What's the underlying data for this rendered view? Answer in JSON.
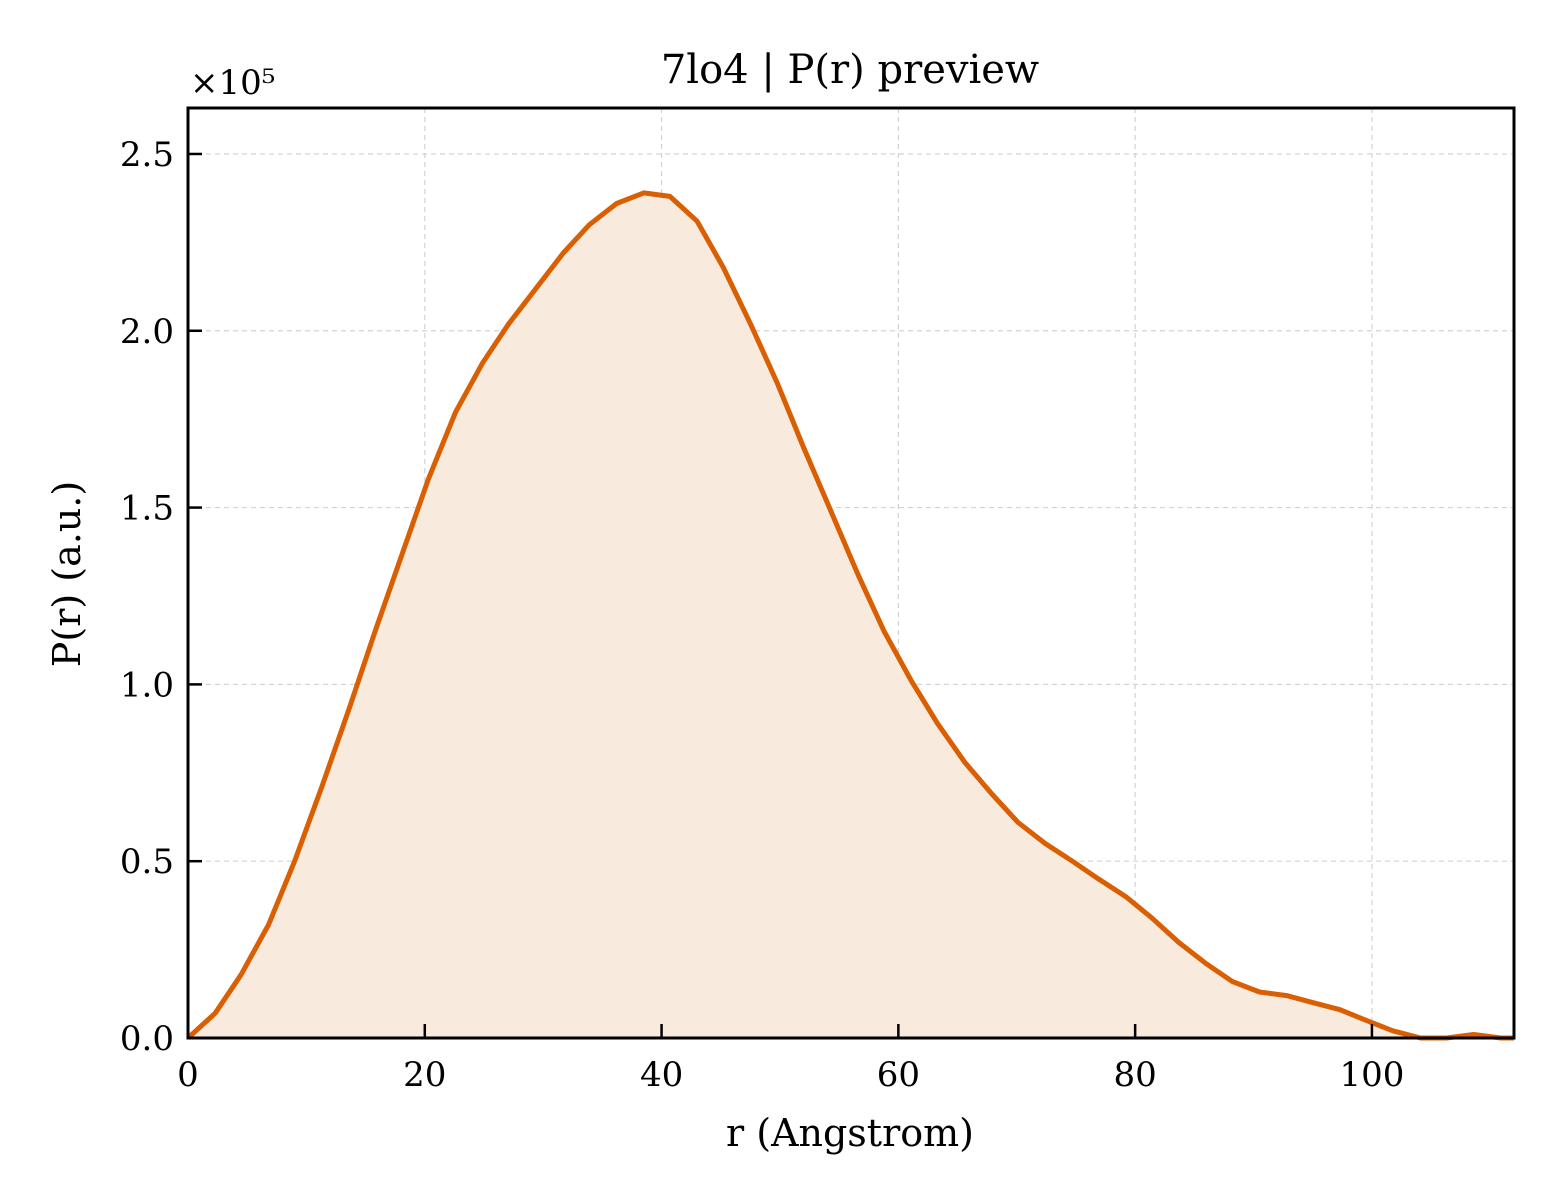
{
  "chart_data": {
    "type": "area",
    "title": "7lo4 | P(r) preview",
    "xlabel": "r (Angstrom)",
    "ylabel": "P(r) (a.u.)",
    "y_multiplier_label": "×10⁵",
    "y_scale_factor": 100000,
    "xlim": [
      0,
      112
    ],
    "ylim": [
      0,
      2.63
    ],
    "xticks": [
      0,
      20,
      40,
      60,
      80,
      100
    ],
    "xtick_labels": [
      "0",
      "20",
      "40",
      "60",
      "80",
      "100"
    ],
    "yticks": [
      0,
      0.5,
      1.0,
      1.5,
      2.0,
      2.5
    ],
    "ytick_labels": [
      "0.0",
      "0.5",
      "1.0",
      "1.5",
      "2.0",
      "2.5"
    ],
    "grid": true,
    "series": [
      {
        "x": [
          0,
          2.3,
          4.5,
          6.8,
          9.0,
          11.3,
          13.6,
          15.8,
          18.1,
          20.3,
          22.6,
          24.9,
          27.1,
          29.4,
          31.7,
          33.9,
          36.2,
          38.5,
          40.7,
          43.0,
          45.2,
          47.5,
          49.8,
          52.0,
          54.3,
          56.6,
          58.8,
          61.1,
          63.3,
          65.6,
          67.9,
          70.1,
          72.4,
          74.7,
          76.9,
          79.2,
          81.4,
          83.7,
          86.0,
          88.2,
          90.5,
          92.8,
          95.0,
          97.3,
          99.5,
          101.8,
          104.1,
          106.3,
          108.6,
          110.9,
          112
        ],
        "y": [
          0,
          0.07,
          0.18,
          0.32,
          0.5,
          0.71,
          0.93,
          1.15,
          1.37,
          1.58,
          1.77,
          1.91,
          2.02,
          2.12,
          2.22,
          2.3,
          2.36,
          2.39,
          2.38,
          2.31,
          2.18,
          2.02,
          1.85,
          1.67,
          1.49,
          1.31,
          1.15,
          1.01,
          0.89,
          0.78,
          0.69,
          0.61,
          0.55,
          0.5,
          0.45,
          0.4,
          0.34,
          0.27,
          0.21,
          0.16,
          0.13,
          0.12,
          0.1,
          0.08,
          0.05,
          0.02,
          0.0,
          0.0,
          0.01,
          0.0,
          0.0
        ]
      }
    ],
    "colors": {
      "line": "#d95f02",
      "fill": "#f9eade",
      "grid": "#d3d3d3",
      "axes": "#000000"
    }
  }
}
